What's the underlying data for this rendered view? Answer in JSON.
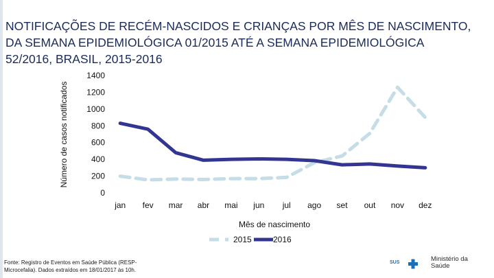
{
  "title_lines": [
    "NOTIFICAÇÕES DE RECÉM-NASCIDOS E CRIANÇAS POR MÊS DE NASCIMENTO,",
    "DA SEMANA EPIDEMIOLÓGICA 01/2015 ATÉ A SEMANA EPIDEMIOLÓGICA",
    "52/2016, BRASIL, 2015-2016"
  ],
  "chart_data": {
    "type": "line",
    "title": "NOTIFICAÇÕES DE RECÉM-NASCIDOS E CRIANÇAS POR MÊS DE NASCIMENTO, DA SEMANA EPIDEMIOLÓGICA 01/2015 ATÉ A SEMANA EPIDEMIOLÓGICA 52/2016, BRASIL, 2015-2016",
    "xlabel": "Mês de nascimento",
    "ylabel": "Número de casos notificados",
    "categories": [
      "jan",
      "fev",
      "mar",
      "abr",
      "mai",
      "jun",
      "jul",
      "ago",
      "set",
      "out",
      "nov",
      "dez"
    ],
    "ylim": [
      0,
      1400
    ],
    "yticks": [
      "0",
      "200",
      "400",
      "600",
      "800",
      "1000",
      "1200",
      "1400"
    ],
    "series": [
      {
        "name": "2015",
        "values": [
          200,
          155,
          165,
          160,
          170,
          170,
          185,
          360,
          440,
          710,
          1260,
          900
        ],
        "color": "#c5dde6",
        "dashed": true
      },
      {
        "name": "2016",
        "values": [
          830,
          760,
          480,
          390,
          400,
          405,
          400,
          385,
          335,
          345,
          320,
          300
        ],
        "color": "#333592",
        "dashed": false
      }
    ],
    "legend": "bottom"
  },
  "source_lines": [
    "Fonte: Registro de Eventos em Saúde Pública (RESP-",
    "Microcefalia). Dados extraídos em 18/01/2017 às 10h."
  ],
  "logos": {
    "sus": "SUS",
    "ministry_lines": [
      "Ministério da",
      "Saúde"
    ]
  }
}
